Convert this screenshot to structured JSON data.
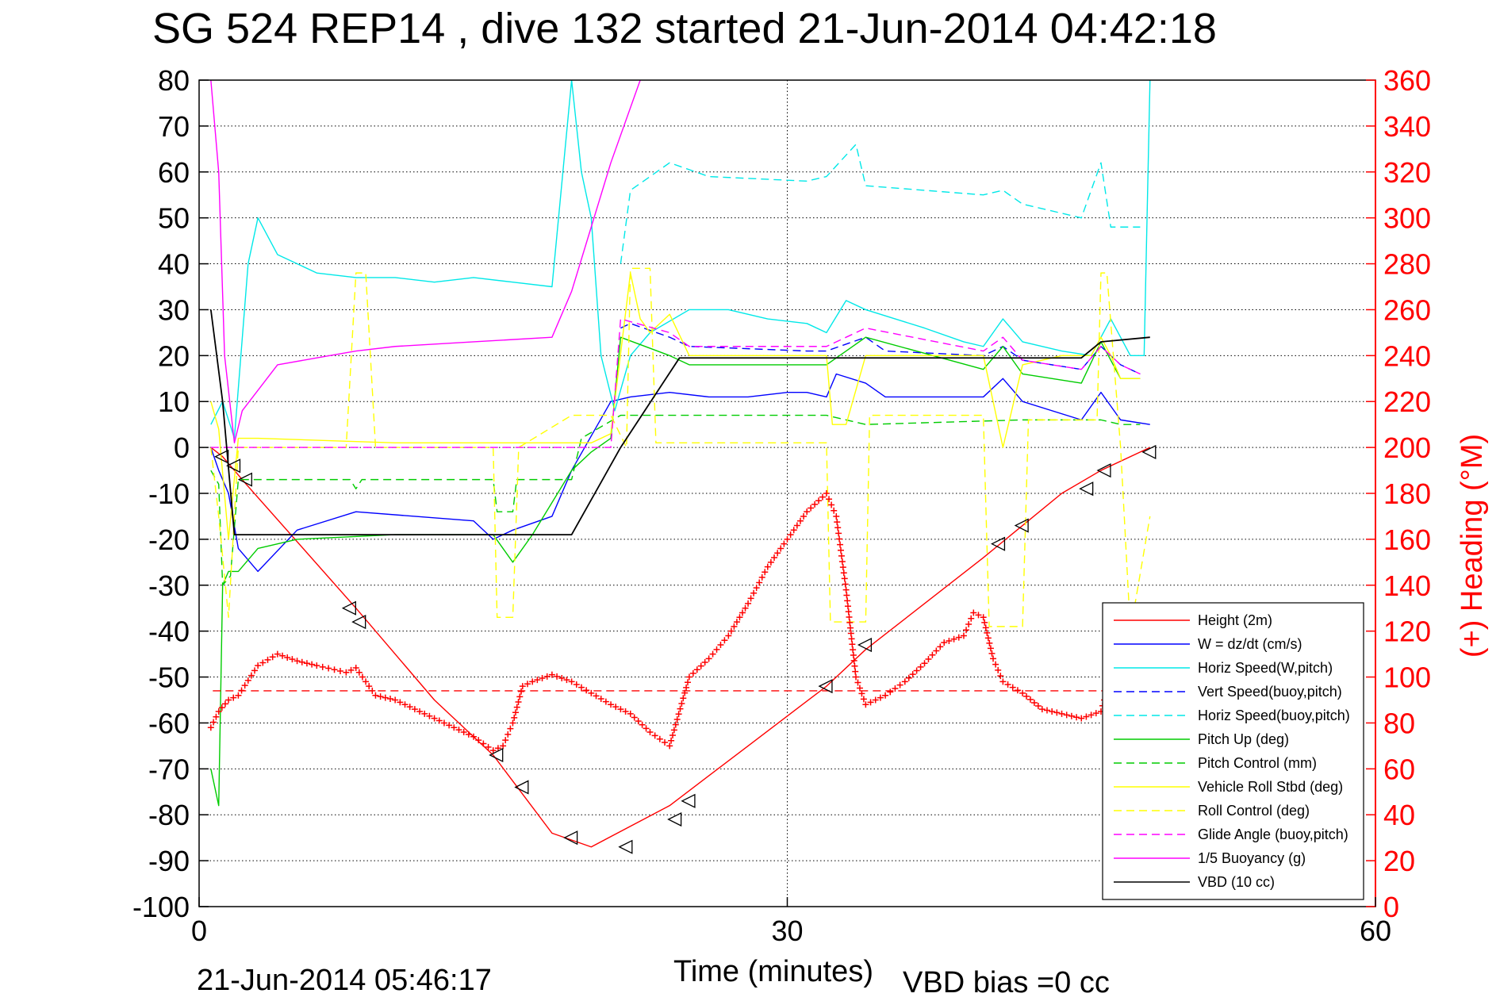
{
  "chart_data": {
    "type": "line",
    "title": "SG 524   REP14  , dive 132 started 21-Jun-2014 04:42:18",
    "xlabel": "Time (minutes)",
    "ylabel_right": "(+) Heading (°M)",
    "footer_left": "21-Jun-2014 05:46:17",
    "footer_right": "VBD bias =0 cc",
    "xlim": [
      0,
      60
    ],
    "ylim": [
      -100,
      80
    ],
    "ylim_right": [
      0,
      360
    ],
    "xticks": [
      "0",
      "30",
      "60"
    ],
    "yticks": [
      "80",
      "70",
      "60",
      "50",
      "40",
      "30",
      "20",
      "10",
      "0",
      "-10",
      "-20",
      "-30",
      "-40",
      "-50",
      "-60",
      "-70",
      "-80",
      "-90",
      "-100"
    ],
    "yticks_right": [
      "360",
      "340",
      "320",
      "300",
      "280",
      "260",
      "240",
      "220",
      "200",
      "180",
      "160",
      "140",
      "120",
      "100",
      "80",
      "60",
      "40",
      "20",
      "0"
    ],
    "grid": true,
    "legend_position": "bottom-right",
    "colors": {
      "axis_right": "#ff0000"
    },
    "series": [
      {
        "name": "Height (2m)",
        "color": "#ff0000",
        "dash": "solid",
        "x": [
          0.6,
          1.2,
          2.4,
          8,
          12,
          15,
          18,
          20,
          24,
          28,
          32,
          34,
          40,
          44,
          46,
          48.5
        ],
        "y": [
          0,
          -2,
          -8,
          -35,
          -55,
          -67,
          -84,
          -87,
          -78,
          -65,
          -52,
          -44,
          -24,
          -10,
          -5,
          0
        ]
      },
      {
        "name": "W = dz/dt (cm/s)",
        "color": "#0000ff",
        "dash": "solid",
        "x": [
          0.6,
          1,
          1.5,
          2,
          3,
          5,
          8,
          11,
          14,
          15,
          16,
          18,
          19,
          21,
          22,
          24,
          26,
          28,
          30,
          31,
          32,
          32.5,
          34,
          35,
          38,
          40,
          41,
          42,
          45,
          46,
          47,
          48.5
        ],
        "y": [
          0,
          -5,
          -10,
          -22,
          -27,
          -18,
          -14,
          -15,
          -16,
          -20,
          -18,
          -15,
          -5,
          10,
          11,
          12,
          11,
          11,
          12,
          12,
          11,
          16,
          14,
          11,
          11,
          11,
          15,
          10,
          6,
          12,
          6,
          5
        ]
      },
      {
        "name": "Horiz Speed(W,pitch)",
        "color": "#00e8e8",
        "dash": "solid",
        "x": [
          0.6,
          1.2,
          1.8,
          2.5,
          3,
          4,
          6,
          8,
          10,
          12,
          14,
          16,
          18,
          19,
          19.5,
          20,
          20.5,
          21.2,
          22,
          23,
          25,
          27,
          29,
          31,
          32,
          33,
          34,
          37,
          39,
          40,
          41,
          42,
          44,
          45.5,
          46.5,
          47.5,
          48.2,
          48.5
        ],
        "y": [
          5,
          10,
          2,
          40,
          50,
          42,
          38,
          37,
          37,
          36,
          37,
          36,
          35,
          80,
          60,
          50,
          20,
          8,
          20,
          25,
          30,
          30,
          28,
          27,
          25,
          32,
          30,
          26,
          23,
          22,
          28,
          23,
          21,
          20,
          28,
          20,
          20,
          80
        ]
      },
      {
        "name": "Vert Speed(buoy,pitch)",
        "color": "#0000ff",
        "dash": "dashed",
        "x": [
          21.5,
          22,
          24,
          25,
          31,
          32,
          34,
          35,
          40,
          41,
          42,
          45,
          46,
          47,
          48
        ],
        "y": [
          26,
          27,
          24,
          22,
          21,
          21,
          24,
          21,
          20,
          22,
          19,
          17,
          22,
          18,
          16
        ]
      },
      {
        "name": "Horiz Speed(buoy,pitch)",
        "color": "#00e8e8",
        "dash": "dashed",
        "x": [
          21.5,
          22,
          24,
          26,
          31,
          32,
          33.5,
          34,
          40,
          41,
          42,
          45,
          46,
          46.5,
          47,
          48
        ],
        "y": [
          40,
          56,
          62,
          59,
          58,
          59,
          66,
          57,
          55,
          56,
          53,
          50,
          62,
          48,
          48,
          48
        ]
      },
      {
        "name": "Pitch Up (deg)",
        "color": "#00cc00",
        "dash": "solid",
        "x": [
          0.6,
          1,
          1.2,
          1.5,
          2,
          3,
          5,
          10,
          15,
          16,
          17,
          19,
          20,
          21,
          21.5,
          24,
          25,
          31,
          32,
          34,
          40,
          41,
          42,
          45,
          46,
          47,
          48
        ],
        "y": [
          -70,
          -78,
          -30,
          -27,
          -27,
          -22,
          -20,
          -19,
          -19,
          -25,
          -19,
          -5,
          -1,
          2,
          24,
          20,
          18,
          18,
          18,
          24,
          17,
          22,
          16,
          14,
          23,
          15,
          15
        ]
      },
      {
        "name": "Pitch Control (mm)",
        "color": "#00cc00",
        "dash": "dashed",
        "x": [
          0.6,
          1,
          1.2,
          1.6,
          2,
          3,
          7.7,
          8,
          8.3,
          15,
          15.2,
          16,
          16.2,
          19,
          19.5,
          21.5,
          32,
          34,
          42,
          46,
          47,
          48
        ],
        "y": [
          -5,
          -8,
          -30,
          -28,
          -7,
          -7,
          -7,
          -9,
          -7,
          -7,
          -14,
          -14,
          -7,
          -7,
          2,
          7,
          7,
          5,
          6,
          6,
          5,
          5
        ]
      },
      {
        "name": "Vehicle Roll Stbd (deg)",
        "color": "#ffff00",
        "dash": "solid",
        "x": [
          0.6,
          1,
          1.5,
          2,
          3,
          10,
          16,
          19,
          20,
          21,
          22,
          22.5,
          23,
          24,
          25,
          30,
          32,
          32.3,
          33,
          34,
          40,
          41,
          42,
          44,
          45.5,
          46,
          46.5,
          47,
          48
        ],
        "y": [
          10,
          4,
          -20,
          2,
          2,
          1,
          1,
          1,
          1,
          3,
          38,
          28,
          25,
          29,
          20,
          20,
          20,
          5,
          5,
          20,
          20,
          0,
          18,
          20,
          20,
          24,
          20,
          15,
          15
        ]
      },
      {
        "name": "Roll Control (deg)",
        "color": "#ffff00",
        "dash": "dashed",
        "x": [
          0.6,
          1,
          1.5,
          2,
          3,
          7.5,
          8,
          8.5,
          9,
          15,
          15.2,
          16,
          16.3,
          19,
          21,
          21.8,
          22,
          23,
          23.3,
          32,
          32.2,
          34,
          34.2,
          40,
          40.3,
          42,
          42.3,
          45.8,
          46,
          46.3,
          47,
          47.5,
          48.5
        ],
        "y": [
          0,
          -15,
          -37,
          0,
          0,
          0,
          38,
          38,
          0,
          0,
          -37,
          -37,
          0,
          7,
          7,
          0,
          39,
          39,
          1,
          1,
          -38,
          -38,
          7,
          7,
          -39,
          -39,
          6,
          6,
          38,
          38,
          0,
          -40,
          -15
        ]
      },
      {
        "name": "Glide Angle (buoy,pitch)",
        "color": "#ff00ff",
        "dash": "dashed",
        "x": [
          0.6,
          21,
          21.5,
          24,
          25,
          32,
          34,
          40,
          41,
          42,
          45,
          46,
          47,
          48
        ],
        "y": [
          0,
          0,
          28,
          25,
          22,
          22,
          26,
          21,
          24,
          19,
          17,
          22,
          18,
          16
        ]
      },
      {
        "name": "1/5 Buoyancy (g)",
        "color": "#ff00ff",
        "dash": "solid",
        "x": [
          0.6,
          1,
          1.3,
          1.8,
          2.2,
          4,
          6,
          8,
          10,
          14,
          18,
          19,
          20,
          21,
          22.5
        ],
        "y": [
          80,
          60,
          20,
          1,
          8,
          18,
          19.5,
          21,
          22,
          23,
          24,
          34,
          48,
          62,
          80
        ]
      },
      {
        "name": "VBD (10 cc)",
        "color": "#000000",
        "dash": "solid",
        "x": [
          0.6,
          1.2,
          1.8,
          3,
          19,
          21.5,
          24.5,
          45,
          46,
          48.5
        ],
        "y": [
          30,
          10,
          -19,
          -19,
          -19,
          0,
          19.5,
          19.5,
          23,
          24
        ]
      },
      {
        "name": "Heading",
        "color": "#ff0000",
        "dash": "plus",
        "axis": "right",
        "x": [
          0.6,
          1,
          1.5,
          2,
          3,
          4,
          5,
          6,
          7.5,
          8,
          9,
          10,
          12,
          14,
          15,
          15.5,
          16,
          16.5,
          17,
          18,
          19,
          20,
          21,
          22,
          23,
          24,
          25,
          26,
          27,
          28,
          29,
          30,
          31,
          32,
          32.5,
          33,
          33.5,
          34,
          35,
          36,
          37,
          38,
          39,
          39.5,
          40,
          40.5,
          41,
          42,
          43,
          44,
          45,
          46,
          46.5
        ],
        "y": [
          78,
          85,
          90,
          92,
          105,
          110,
          107,
          105,
          102,
          104,
          92,
          90,
          82,
          74,
          68,
          70,
          80,
          96,
          98,
          101,
          98,
          93,
          88,
          84,
          76,
          70,
          100,
          108,
          118,
          132,
          148,
          160,
          172,
          180,
          170,
          138,
          100,
          88,
          92,
          98,
          106,
          115,
          118,
          128,
          126,
          108,
          98,
          93,
          86,
          84,
          82,
          85,
          100
        ]
      },
      {
        "name": "Mean Heading",
        "color": "#ff0000",
        "dash": "dashed",
        "axis": "right",
        "x": [
          0.7,
          46.5
        ],
        "y": [
          94,
          94
        ]
      }
    ],
    "markers": {
      "x": [
        1.2,
        1.8,
        2.4,
        7.7,
        8.2,
        15.2,
        16.5,
        19,
        21.8,
        24.3,
        25,
        32,
        34,
        40.8,
        42,
        45.3,
        46.2,
        48.5
      ],
      "y": [
        -2,
        -4,
        -7,
        -35,
        -38,
        -67,
        -74,
        -85,
        -87,
        -81,
        -77,
        -52,
        -43,
        -21,
        -17,
        -9,
        -5,
        -1
      ]
    }
  }
}
